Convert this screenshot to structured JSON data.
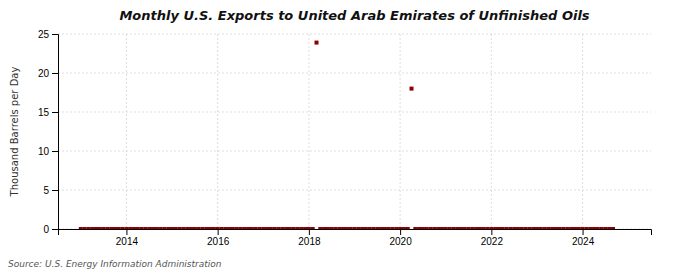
{
  "chart_data": {
    "type": "scatter",
    "title": "Monthly U.S. Exports to United Arab Emirates of Unfinished Oils",
    "ylabel": "Thousand Barrels per Day",
    "annotations": [
      "Source: U.S. Energy Information Administration"
    ],
    "color": "#8b0000",
    "marker": "square",
    "grid": true,
    "xlim": [
      2012.5,
      2025.5
    ],
    "xticks": [
      2014,
      2016,
      2018,
      2020,
      2022,
      2024
    ],
    "ylim": [
      0,
      25
    ],
    "yticks": [
      0,
      5,
      10,
      15,
      20,
      25
    ],
    "x": [
      2013.0,
      2013.083,
      2013.167,
      2013.25,
      2013.333,
      2013.417,
      2013.5,
      2013.583,
      2013.667,
      2013.75,
      2013.833,
      2013.917,
      2014.0,
      2014.083,
      2014.167,
      2014.25,
      2014.333,
      2014.417,
      2014.5,
      2014.583,
      2014.667,
      2014.75,
      2014.833,
      2014.917,
      2015.0,
      2015.083,
      2015.167,
      2015.25,
      2015.333,
      2015.417,
      2015.5,
      2015.583,
      2015.667,
      2015.75,
      2015.833,
      2015.917,
      2016.0,
      2016.083,
      2016.167,
      2016.25,
      2016.333,
      2016.417,
      2016.5,
      2016.583,
      2016.667,
      2016.75,
      2016.833,
      2016.917,
      2017.0,
      2017.083,
      2017.167,
      2017.25,
      2017.333,
      2017.417,
      2017.5,
      2017.583,
      2017.667,
      2017.75,
      2017.833,
      2017.917,
      2018.0,
      2018.083,
      2018.167,
      2018.25,
      2018.333,
      2018.417,
      2018.5,
      2018.583,
      2018.667,
      2018.75,
      2018.833,
      2018.917,
      2019.0,
      2019.083,
      2019.167,
      2019.25,
      2019.333,
      2019.417,
      2019.5,
      2019.583,
      2019.667,
      2019.75,
      2019.833,
      2019.917,
      2020.0,
      2020.083,
      2020.167,
      2020.25,
      2020.333,
      2020.417,
      2020.5,
      2020.583,
      2020.667,
      2020.75,
      2020.833,
      2020.917,
      2021.0,
      2021.083,
      2021.167,
      2021.25,
      2021.333,
      2021.417,
      2021.5,
      2021.583,
      2021.667,
      2021.75,
      2021.833,
      2021.917,
      2022.0,
      2022.083,
      2022.167,
      2022.25,
      2022.333,
      2022.417,
      2022.5,
      2022.583,
      2022.667,
      2022.75,
      2022.833,
      2022.917,
      2023.0,
      2023.083,
      2023.167,
      2023.25,
      2023.333,
      2023.417,
      2023.5,
      2023.583,
      2023.667,
      2023.75,
      2023.833,
      2023.917,
      2024.0,
      2024.083,
      2024.167,
      2024.25,
      2024.333,
      2024.417,
      2024.5,
      2024.583,
      2024.667
    ],
    "values": [
      0,
      0,
      0,
      0,
      0,
      0,
      0,
      0,
      0,
      0,
      0,
      0,
      0,
      0,
      0,
      0,
      0,
      0,
      0,
      0,
      0,
      0,
      0,
      0,
      0,
      0,
      0,
      0,
      0,
      0,
      0,
      0,
      0,
      0,
      0,
      0,
      0,
      0,
      0,
      0,
      0,
      0,
      0,
      0,
      0,
      0,
      0,
      0,
      0,
      0,
      0,
      0,
      0,
      0,
      0,
      0,
      0,
      0,
      0,
      0,
      0,
      0,
      23.9,
      0,
      0,
      0,
      0,
      0,
      0,
      0,
      0,
      0,
      0,
      0,
      0,
      0,
      0,
      0,
      0,
      0,
      0,
      0,
      0,
      0,
      0,
      0,
      0,
      18.0,
      0,
      0,
      0,
      0,
      0,
      0,
      0,
      0,
      0,
      0,
      0,
      0,
      0,
      0,
      0,
      0,
      0,
      0,
      0,
      0,
      0,
      0,
      0,
      0,
      0,
      0,
      0,
      0,
      0,
      0,
      0,
      0,
      0,
      0,
      0,
      0,
      0,
      0,
      0,
      0,
      0,
      0,
      0,
      0,
      0,
      0,
      0,
      0,
      0,
      0,
      0,
      0,
      0
    ]
  }
}
